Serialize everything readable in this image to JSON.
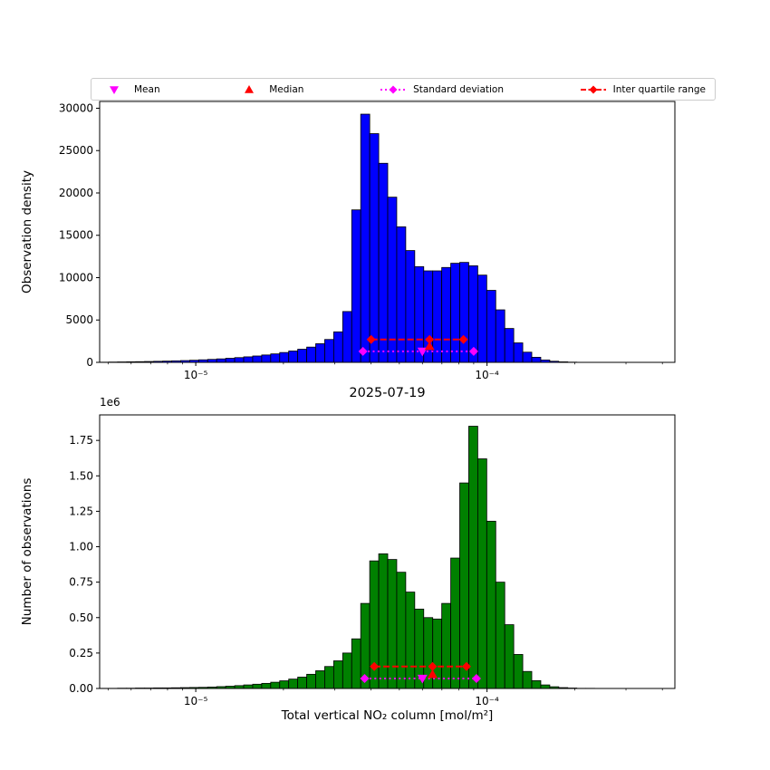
{
  "title": "2025-07-19",
  "xlabel": "Total vertical NO₂ column [mol/m²]",
  "colors": {
    "hist_top": "#0000ff",
    "hist_bottom": "#008000",
    "bar_edge": "#000000",
    "mean": "#ff00ff",
    "median": "#ff0000",
    "std": "#ff00ff",
    "iqr": "#ff0000",
    "axis": "#000000"
  },
  "legend": {
    "items": [
      {
        "label": "Mean",
        "marker": "triangle-down",
        "color": "#ff00ff",
        "line": "none"
      },
      {
        "label": "Median",
        "marker": "triangle-up",
        "color": "#ff0000",
        "line": "none"
      },
      {
        "label": "Standard deviation",
        "marker": "diamond",
        "color": "#ff00ff",
        "line": "dotted"
      },
      {
        "label": "Inter quartile range",
        "marker": "diamond",
        "color": "#ff0000",
        "line": "dashed"
      }
    ]
  },
  "xticks": [
    {
      "log10": -5,
      "label": "10⁻⁵"
    },
    {
      "log10": -4,
      "label": "10⁻⁴"
    }
  ],
  "chart_data": [
    {
      "type": "bar",
      "name": "observation-density",
      "ylabel": "Observation density",
      "color": "#0000ff",
      "x_scale": "log",
      "xlim_log10": [
        -5.33,
        -3.355
      ],
      "ylim": [
        0,
        30800
      ],
      "yticks": {
        "values": [
          0,
          5000,
          10000,
          15000,
          20000,
          25000,
          30000
        ],
        "labels": [
          "0",
          "5000",
          "10000",
          "15000",
          "20000",
          "25000",
          "30000"
        ]
      },
      "bins_log10": {
        "start": -5.33,
        "step": 0.030909,
        "count": 55
      },
      "values": [
        20,
        35,
        50,
        65,
        80,
        100,
        125,
        150,
        180,
        210,
        250,
        300,
        350,
        410,
        480,
        560,
        650,
        750,
        870,
        1000,
        1160,
        1340,
        1550,
        1800,
        2200,
        2700,
        3600,
        6000,
        18000,
        29300,
        27000,
        23500,
        19500,
        16000,
        13200,
        11300,
        10800,
        10800,
        11200,
        11700,
        11800,
        11400,
        10300,
        8500,
        6200,
        4000,
        2300,
        1200,
        600,
        280,
        130,
        60,
        25,
        10,
        4
      ],
      "markers": {
        "mean": {
          "x": 6e-05,
          "y": 1300
        },
        "median": {
          "x": 6.35e-05,
          "y": 1900
        },
        "std": {
          "x1": 3.75e-05,
          "x2": 9e-05,
          "y": 1300
        },
        "iqr": {
          "x1": 4e-05,
          "x2": 8.3e-05,
          "xmid": 6.35e-05,
          "y": 2700
        }
      }
    },
    {
      "type": "bar",
      "name": "number-of-observations",
      "ylabel": "Number of observations",
      "offset_text": "1e6",
      "color": "#008000",
      "x_scale": "log",
      "xlim_log10": [
        -5.33,
        -3.355
      ],
      "ylim": [
        0,
        1930000
      ],
      "yticks": {
        "values": [
          0,
          250000,
          500000,
          750000,
          1000000,
          1250000,
          1500000,
          1750000
        ],
        "labels": [
          "0.00",
          "0.25",
          "0.50",
          "0.75",
          "1.00",
          "1.25",
          "1.50",
          "1.75"
        ]
      },
      "bins_log10": {
        "start": -5.33,
        "step": 0.030909,
        "count": 55
      },
      "values": [
        1000,
        1000,
        2000,
        2000,
        3000,
        3000,
        4000,
        4000,
        5000,
        6000,
        7000,
        8000,
        10000,
        13000,
        16000,
        20000,
        25000,
        30000,
        36000,
        44000,
        54000,
        66000,
        80000,
        100000,
        125000,
        155000,
        195000,
        250000,
        350000,
        600000,
        900000,
        950000,
        910000,
        820000,
        680000,
        560000,
        500000,
        490000,
        600000,
        920000,
        1450000,
        1850000,
        1620000,
        1180000,
        750000,
        450000,
        240000,
        120000,
        55000,
        25000,
        12000,
        6000,
        3000,
        1000,
        1000
      ],
      "markers": {
        "mean": {
          "x": 6e-05,
          "y": 70000
        },
        "median": {
          "x": 6.5e-05,
          "y": 100000
        },
        "std": {
          "x1": 3.8e-05,
          "x2": 9.2e-05,
          "y": 70000
        },
        "iqr": {
          "x1": 4.1e-05,
          "x2": 8.5e-05,
          "xmid": 6.5e-05,
          "y": 155000
        }
      }
    }
  ]
}
